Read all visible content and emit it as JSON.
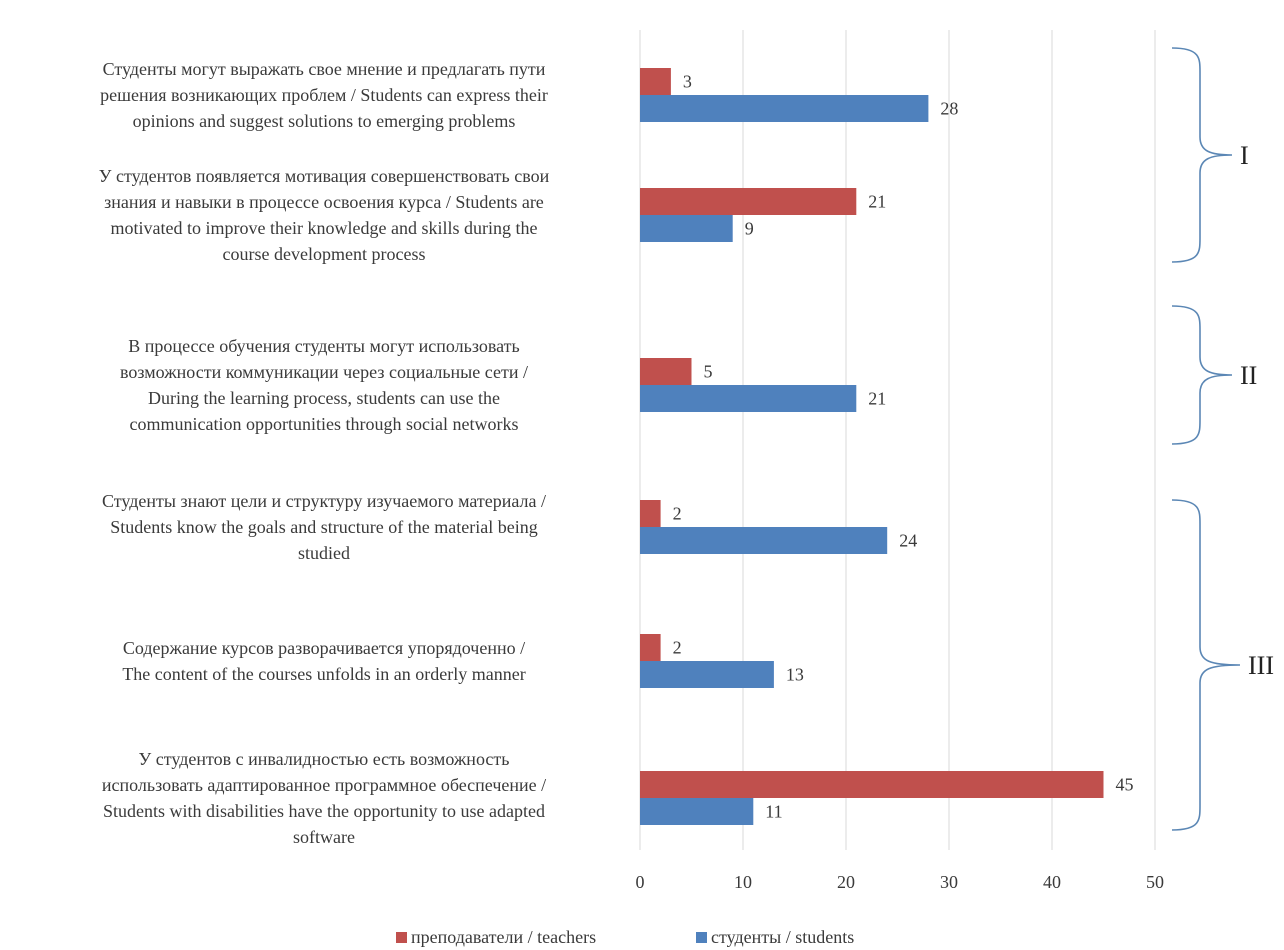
{
  "chart_data": {
    "type": "bar",
    "orientation": "horizontal",
    "categories": [
      [
        "Студенты могут выражать свое мнение и предлагать пути",
        "решения возникающих проблем / Students can express their",
        "opinions and suggest solutions to emerging problems"
      ],
      [
        "У студентов появляется  мотивация совершенствовать свои",
        "знания и навыки в процессе освоения курса / Students are",
        "motivated to improve their knowledge and skills during the",
        "course development process"
      ],
      [
        "В процессе обучения студенты могут использовать",
        "возможности коммуникации через социальные сети /",
        "During the learning process, students can use the",
        "communication opportunities through social networks"
      ],
      [
        "Студенты знают цели и структуру изучаемого материала /",
        "Students know the goals and structure of the material being",
        "studied"
      ],
      [
        "Содержание курсов разворачивается упорядоченно /",
        "The content of the courses unfolds in an orderly manner"
      ],
      [
        "У студентов с инвалидностью есть возможность",
        "использовать адаптированное программное обеспечение /",
        "Students with disabilities have the opportunity to use adapted",
        "software"
      ]
    ],
    "series": [
      {
        "name": "преподаватели / teachers",
        "color": "#c0504d",
        "values": [
          3,
          21,
          5,
          2,
          2,
          45
        ]
      },
      {
        "name": "студенты / students",
        "color": "#4f81bd",
        "values": [
          28,
          9,
          21,
          24,
          13,
          11
        ]
      }
    ],
    "xlim": [
      0,
      50
    ],
    "xticks": [
      0,
      10,
      20,
      30,
      40,
      50
    ],
    "grid": true,
    "legend_position": "bottom-center",
    "groups": [
      {
        "label": "I",
        "categories": [
          0,
          1
        ]
      },
      {
        "label": "II",
        "categories": [
          2
        ]
      },
      {
        "label": "III",
        "categories": [
          3,
          4,
          5
        ]
      }
    ],
    "title": "",
    "xlabel": "",
    "ylabel": ""
  }
}
